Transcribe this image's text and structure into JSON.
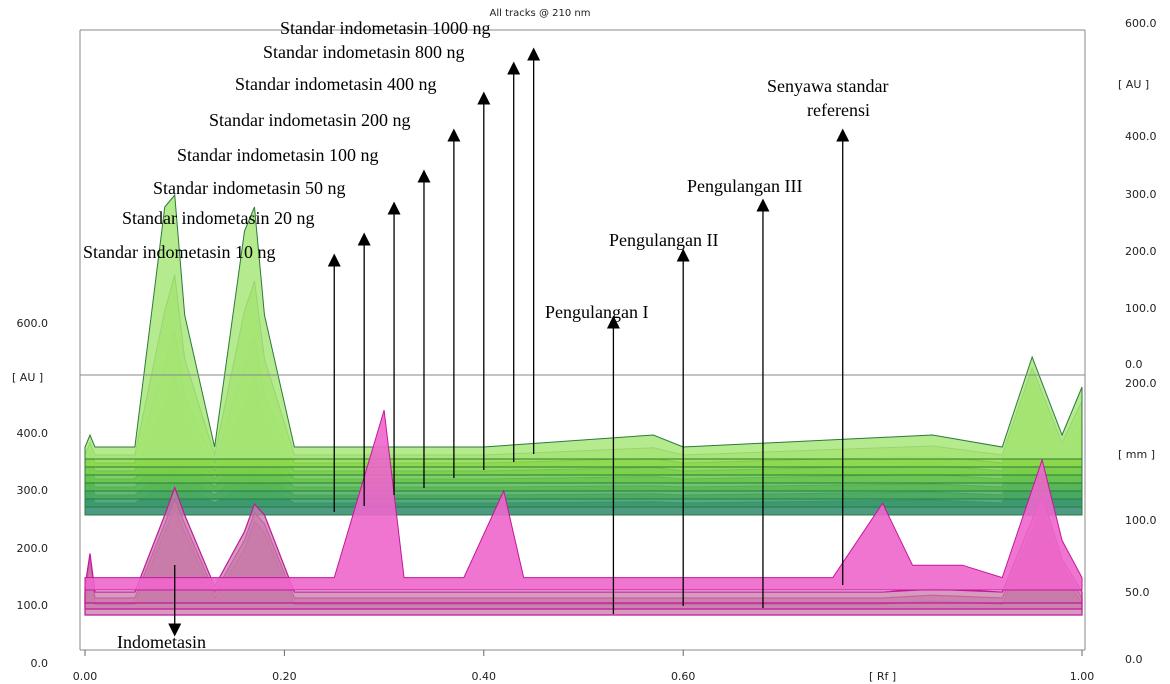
{
  "chart_data": {
    "type": "area",
    "title": "All tracks @ 210 nm",
    "x_axis": {
      "label": "[ Rf ]",
      "range": [
        0.0,
        1.0
      ],
      "ticks": [
        "0.00",
        "0.20",
        "0.40",
        "0.60",
        "1.00"
      ]
    },
    "y_axis_left": {
      "label": "[ AU ]",
      "range": [
        0,
        700
      ],
      "ticks": [
        "0.0",
        "100.0",
        "200.0",
        "300.0",
        "400.0",
        "600.0"
      ]
    },
    "y_axis_right_au": {
      "label": "[ AU ]",
      "ticks": [
        "0.0",
        "100.0",
        "200.0",
        "300.0",
        "400.0",
        "600.0"
      ]
    },
    "y_axis_right_mm": {
      "label": "[ mm ]",
      "ticks": [
        "50.0",
        "100.0",
        "200.0"
      ]
    },
    "colors": {
      "standard_green": "#8fd94a",
      "standard_dark": "#2f8a6e",
      "sample_pink": "#ee66cc",
      "sample_edge": "#c2189a",
      "reference_mauve": "#c87aa8"
    },
    "series": [
      {
        "name": "Standar indometasin 10 ng",
        "group": "standard",
        "x": [
          0.0,
          0.005,
          0.01,
          0.05,
          0.08,
          0.09,
          0.1,
          0.13,
          0.16,
          0.17,
          0.18,
          0.21,
          0.3,
          0.4,
          0.57,
          0.6,
          0.85,
          0.92,
          0.95,
          0.98,
          1.0
        ],
        "y": [
          20,
          40,
          20,
          20,
          50,
          90,
          50,
          20,
          50,
          85,
          50,
          20,
          20,
          20,
          22,
          20,
          25,
          20,
          135,
          40,
          80
        ]
      },
      {
        "name": "Standar indometasin 20 ng",
        "group": "standard",
        "x": [
          0.0,
          0.005,
          0.01,
          0.05,
          0.08,
          0.09,
          0.1,
          0.13,
          0.16,
          0.17,
          0.18,
          0.21,
          0.3,
          0.4,
          0.57,
          0.6,
          0.85,
          0.92,
          0.95,
          0.98,
          1.0
        ],
        "y": [
          20,
          40,
          20,
          20,
          60,
          105,
          55,
          20,
          60,
          100,
          55,
          20,
          20,
          20,
          22,
          20,
          25,
          20,
          140,
          40,
          85
        ]
      },
      {
        "name": "Standar indometasin 50 ng",
        "group": "standard",
        "x": [
          0.0,
          0.005,
          0.01,
          0.05,
          0.08,
          0.09,
          0.1,
          0.13,
          0.16,
          0.17,
          0.18,
          0.21,
          0.3,
          0.4,
          0.57,
          0.6,
          0.85,
          0.92,
          0.95,
          0.98,
          1.0
        ],
        "y": [
          20,
          40,
          20,
          20,
          75,
          125,
          65,
          20,
          75,
          120,
          65,
          20,
          20,
          20,
          22,
          20,
          25,
          20,
          145,
          40,
          90
        ]
      },
      {
        "name": "Standar indometasin 100 ng",
        "group": "standard",
        "x": [
          0.0,
          0.005,
          0.01,
          0.05,
          0.08,
          0.09,
          0.1,
          0.13,
          0.16,
          0.17,
          0.18,
          0.21,
          0.3,
          0.4,
          0.57,
          0.6,
          0.85,
          0.92,
          0.95,
          0.98,
          1.0
        ],
        "y": [
          20,
          40,
          20,
          20,
          95,
          150,
          80,
          20,
          95,
          145,
          80,
          20,
          20,
          20,
          24,
          20,
          28,
          20,
          150,
          40,
          95
        ]
      },
      {
        "name": "Standar indometasin 200 ng",
        "group": "standard",
        "x": [
          0.0,
          0.005,
          0.01,
          0.05,
          0.08,
          0.09,
          0.1,
          0.13,
          0.16,
          0.17,
          0.18,
          0.21,
          0.3,
          0.4,
          0.57,
          0.6,
          0.85,
          0.92,
          0.95,
          0.98,
          1.0
        ],
        "y": [
          20,
          40,
          20,
          20,
          130,
          185,
          100,
          20,
          130,
          180,
          100,
          20,
          20,
          20,
          26,
          20,
          30,
          20,
          155,
          40,
          100
        ]
      },
      {
        "name": "Standar indometasin 400 ng",
        "group": "standard",
        "x": [
          0.0,
          0.005,
          0.01,
          0.05,
          0.08,
          0.09,
          0.1,
          0.13,
          0.16,
          0.17,
          0.18,
          0.21,
          0.3,
          0.4,
          0.57,
          0.6,
          0.85,
          0.92,
          0.95,
          0.98,
          1.0
        ],
        "y": [
          20,
          40,
          20,
          20,
          180,
          240,
          130,
          20,
          180,
          230,
          130,
          20,
          20,
          20,
          28,
          20,
          32,
          20,
          160,
          40,
          105
        ]
      },
      {
        "name": "Standar indometasin 800 ng",
        "group": "standard",
        "x": [
          0.0,
          0.005,
          0.01,
          0.05,
          0.08,
          0.09,
          0.1,
          0.13,
          0.16,
          0.17,
          0.18,
          0.21,
          0.3,
          0.4,
          0.57,
          0.6,
          0.85,
          0.92,
          0.95,
          0.98,
          1.0
        ],
        "y": [
          20,
          40,
          20,
          20,
          260,
          320,
          180,
          20,
          260,
          310,
          180,
          20,
          20,
          20,
          32,
          20,
          35,
          20,
          165,
          40,
          110
        ]
      },
      {
        "name": "Standar indometasin 1000 ng",
        "group": "standard",
        "x": [
          0.0,
          0.005,
          0.01,
          0.05,
          0.08,
          0.09,
          0.1,
          0.13,
          0.16,
          0.17,
          0.18,
          0.21,
          0.3,
          0.4,
          0.57,
          0.6,
          0.85,
          0.92,
          0.95,
          0.98,
          1.0
        ],
        "y": [
          20,
          40,
          20,
          20,
          420,
          440,
          240,
          20,
          380,
          420,
          240,
          20,
          20,
          20,
          40,
          20,
          40,
          20,
          170,
          40,
          120
        ]
      },
      {
        "name": "Pengulangan I",
        "group": "sample",
        "x": [
          0.0,
          0.005,
          0.01,
          0.05,
          0.08,
          0.09,
          0.1,
          0.13,
          0.16,
          0.17,
          0.18,
          0.21,
          0.3,
          0.4,
          0.6,
          0.8,
          0.85,
          0.92,
          0.96,
          0.98,
          1.0
        ],
        "y": [
          30,
          90,
          20,
          20,
          150,
          195,
          150,
          30,
          120,
          170,
          150,
          20,
          20,
          20,
          20,
          20,
          25,
          20,
          175,
          80,
          20
        ]
      },
      {
        "name": "Pengulangan II",
        "group": "sample",
        "x": [
          0.0,
          0.005,
          0.01,
          0.05,
          0.08,
          0.09,
          0.1,
          0.13,
          0.16,
          0.17,
          0.18,
          0.21,
          0.3,
          0.4,
          0.6,
          0.8,
          0.85,
          0.92,
          0.96,
          0.98,
          1.0
        ],
        "y": [
          30,
          90,
          20,
          20,
          155,
          200,
          155,
          30,
          125,
          175,
          155,
          20,
          20,
          20,
          20,
          20,
          25,
          20,
          185,
          80,
          20
        ]
      },
      {
        "name": "Pengulangan III",
        "group": "sample",
        "x": [
          0.0,
          0.005,
          0.01,
          0.05,
          0.08,
          0.09,
          0.1,
          0.13,
          0.16,
          0.17,
          0.18,
          0.21,
          0.3,
          0.4,
          0.6,
          0.8,
          0.85,
          0.92,
          0.96,
          0.98,
          1.0
        ],
        "y": [
          30,
          90,
          20,
          20,
          160,
          210,
          160,
          30,
          130,
          180,
          160,
          20,
          20,
          20,
          20,
          20,
          25,
          20,
          195,
          80,
          20
        ]
      },
      {
        "name": "Senyawa standar referensi",
        "group": "reference",
        "x": [
          0.0,
          0.005,
          0.01,
          0.05,
          0.08,
          0.09,
          0.1,
          0.13,
          0.16,
          0.17,
          0.18,
          0.21,
          0.25,
          0.3,
          0.32,
          0.38,
          0.42,
          0.44,
          0.75,
          0.8,
          0.83,
          0.88,
          0.92,
          0.96,
          0.98,
          1.0
        ],
        "y": [
          20,
          20,
          20,
          20,
          20,
          20,
          20,
          20,
          20,
          20,
          20,
          20,
          20,
          290,
          20,
          20,
          160,
          20,
          20,
          140,
          40,
          40,
          20,
          210,
          80,
          20
        ]
      }
    ],
    "annotations": [
      {
        "text": "Standar indometasin 10 ng",
        "target_x": 0.25
      },
      {
        "text": "Standar indometasin 20 ng",
        "target_x": 0.28
      },
      {
        "text": "Standar indometasin 50 ng",
        "target_x": 0.31
      },
      {
        "text": "Standar indometasin 100 ng",
        "target_x": 0.34
      },
      {
        "text": "Standar indometasin 200 ng",
        "target_x": 0.37
      },
      {
        "text": "Standar indometasin 400 ng",
        "target_x": 0.4
      },
      {
        "text": "Standar indometasin 800 ng",
        "target_x": 0.43
      },
      {
        "text": "Standar indometasin 1000 ng",
        "target_x": 0.45
      },
      {
        "text": "Pengulangan I",
        "target_x": 0.53
      },
      {
        "text": "Pengulangan II",
        "target_x": 0.6
      },
      {
        "text": "Pengulangan III",
        "target_x": 0.68
      },
      {
        "text": "Senyawa standar referensi",
        "target_x": 0.76
      },
      {
        "text": "Indometasin",
        "target_x": 0.09
      }
    ]
  }
}
